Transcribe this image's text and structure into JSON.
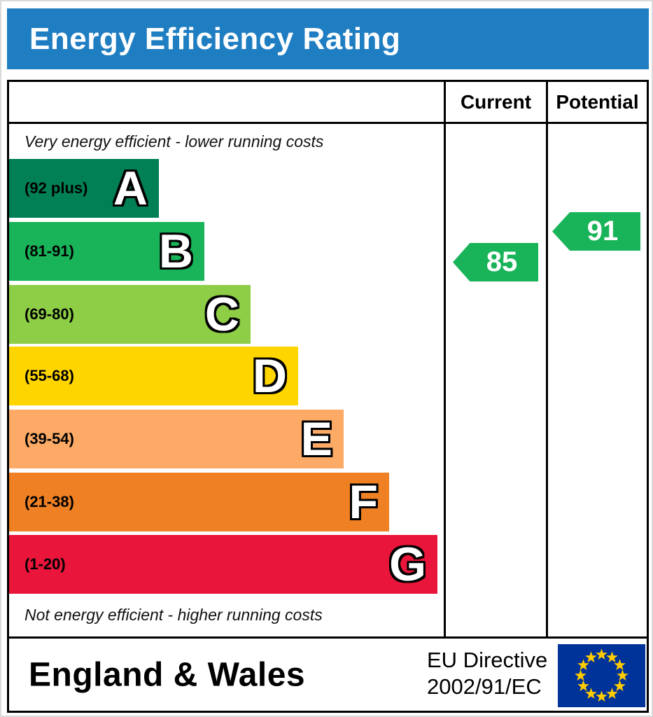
{
  "header": {
    "title": "Energy Efficiency Rating"
  },
  "table": {
    "current_label": "Current",
    "potential_label": "Potential"
  },
  "notes": {
    "top": "Very energy efficient - lower running costs",
    "bottom": "Not energy efficient - higher running costs"
  },
  "bands": [
    {
      "letter": "A",
      "range": "(92 plus)",
      "color": "#008054",
      "width_pct": 34.5
    },
    {
      "letter": "B",
      "range": "(81-91)",
      "color": "#19b459",
      "width_pct": 45
    },
    {
      "letter": "C",
      "range": "(69-80)",
      "color": "#8dce46",
      "width_pct": 55.5
    },
    {
      "letter": "D",
      "range": "(55-68)",
      "color": "#ffd500",
      "width_pct": 66.5
    },
    {
      "letter": "E",
      "range": "(39-54)",
      "color": "#fcaa65",
      "width_pct": 77
    },
    {
      "letter": "F",
      "range": "(21-38)",
      "color": "#ef8023",
      "width_pct": 87.5
    },
    {
      "letter": "G",
      "range": "(1-20)",
      "color": "#e9153b",
      "width_pct": 98.5
    }
  ],
  "ratings": {
    "current": {
      "value": "85",
      "color": "#19b459",
      "band": "B"
    },
    "potential": {
      "value": "91",
      "color": "#19b459",
      "band": "B"
    }
  },
  "footer": {
    "region": "England & Wales",
    "directive": [
      "EU Directive",
      "2002/91/EC"
    ]
  },
  "colors": {
    "header_bg": "#1f7ec2",
    "eu_flag_bg": "#003399",
    "eu_star": "#ffcc00"
  },
  "chart_data": {
    "type": "bar",
    "title": "Energy Efficiency Rating",
    "categories": [
      "A",
      "B",
      "C",
      "D",
      "E",
      "F",
      "G"
    ],
    "band_ranges": [
      "92 plus",
      "81-91",
      "69-80",
      "55-68",
      "39-54",
      "21-38",
      "1-20"
    ],
    "band_colors": [
      "#008054",
      "#19b459",
      "#8dce46",
      "#ffd500",
      "#fcaa65",
      "#ef8023",
      "#e9153b"
    ],
    "bar_lengths_pct": [
      34.5,
      45,
      55.5,
      66.5,
      77,
      87.5,
      98.5
    ],
    "series": [
      {
        "name": "Current",
        "values": [
          85
        ]
      },
      {
        "name": "Potential",
        "values": [
          91
        ]
      }
    ],
    "annotations": [
      "Very energy efficient - lower running costs",
      "Not energy efficient - higher running costs"
    ],
    "footer": "England & Wales — EU Directive 2002/91/EC"
  }
}
